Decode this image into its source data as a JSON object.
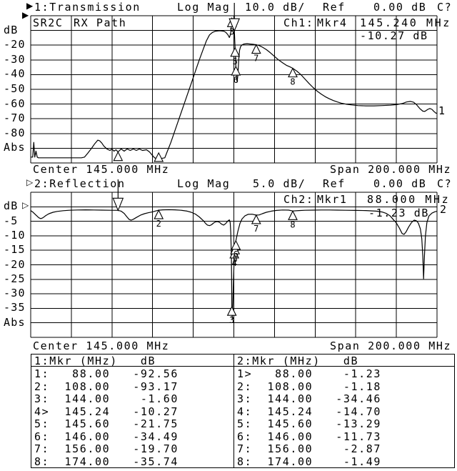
{
  "colors": {
    "background": "#ffffff",
    "foreground": "#000000"
  },
  "channel1": {
    "indicator": "▶",
    "title": "1:Transmission",
    "format": "Log Mag",
    "scale": "10.0 dB/",
    "ref_label": "Ref",
    "ref_value": "0.00 dB",
    "cal_status": "C?",
    "label_cell_1": "SR2C",
    "label_cell_2": "RX Path",
    "readout_channel": "Ch1:",
    "readout_marker": "Mkr4",
    "readout_freq": "145.240 MHz",
    "readout_value": "-10.27 dB",
    "y_labels": [
      "dB",
      "-20",
      "-30",
      "-40",
      "-50",
      "-60",
      "-70",
      "-80",
      "Abs"
    ],
    "center_label": "Center 145.000 MHz",
    "span_label": "Span 200.000 MHz",
    "trace_number": "1",
    "ref_pointer": "▶"
  },
  "channel2": {
    "indicator": "▷",
    "title": "2:Reflection",
    "format": "Log Mag",
    "scale": "5.0 dB/",
    "ref_label": "Ref",
    "ref_value": "0.00 dB",
    "cal_status": "C?",
    "readout_channel": "Ch2:",
    "readout_marker": "Mkr1",
    "readout_freq": "88.000 MHz",
    "readout_value": "-1.23 dB",
    "y_labels": [
      "dB",
      "-5",
      "-10",
      "-15",
      "-20",
      "-25",
      "-30",
      "-35",
      "Abs"
    ],
    "center_label": "Center 145.000 MHz",
    "span_label": "Span 200.000 MHz",
    "trace_number": "2",
    "ref_pointer": "▷"
  },
  "tables": [
    {
      "col_header_left": "1:Mkr (MHz)",
      "col_header_right": "dB",
      "rows": [
        [
          "1:",
          "88.00",
          "-92.56"
        ],
        [
          "2:",
          "108.00",
          "-93.17"
        ],
        [
          "3:",
          "144.00",
          "-1.60"
        ],
        [
          "4>",
          "145.24",
          "-10.27"
        ],
        [
          "5:",
          "145.60",
          "-21.75"
        ],
        [
          "6:",
          "146.00",
          "-34.49"
        ],
        [
          "7:",
          "156.00",
          "-19.70"
        ],
        [
          "8:",
          "174.00",
          "-35.74"
        ]
      ]
    },
    {
      "col_header_left": "2:Mkr (MHz)",
      "col_header_right": "dB",
      "rows": [
        [
          "1>",
          "88.00",
          "-1.23"
        ],
        [
          "2:",
          "108.00",
          "-1.18"
        ],
        [
          "3:",
          "144.00",
          "-34.46"
        ],
        [
          "4:",
          "145.24",
          "-14.70"
        ],
        [
          "5:",
          "145.60",
          "-13.29"
        ],
        [
          "6:",
          "146.00",
          "-11.73"
        ],
        [
          "7:",
          "156.00",
          "-2.87"
        ],
        [
          "8:",
          "174.00",
          "-1.49"
        ]
      ]
    }
  ],
  "chart_data": [
    {
      "type": "line",
      "title": "1:Transmission",
      "format": "Log Mag",
      "scale_db_per_div": 10.0,
      "ref_db": 0.0,
      "x_axis": {
        "center_mhz": 145.0,
        "span_mhz": 200.0,
        "start_mhz": 45.0,
        "stop_mhz": 245.0
      },
      "y_axis": {
        "top_db": 0,
        "bottom_db": -100,
        "grid_divisions": 10
      },
      "active_marker": 4,
      "markers": [
        {
          "n": 1,
          "mhz": 88.0,
          "db": -92.56
        },
        {
          "n": 2,
          "mhz": 108.0,
          "db": -93.17
        },
        {
          "n": 3,
          "mhz": 144.0,
          "db": -1.6
        },
        {
          "n": 4,
          "mhz": 145.24,
          "db": -10.27
        },
        {
          "n": 5,
          "mhz": 145.6,
          "db": -21.75
        },
        {
          "n": 6,
          "mhz": 146.0,
          "db": -34.49
        },
        {
          "n": 7,
          "mhz": 156.0,
          "db": -19.7
        },
        {
          "n": 8,
          "mhz": 174.0,
          "db": -35.74
        }
      ],
      "series": [
        {
          "name": "Transmission trace",
          "x_mhz": [
            45,
            46,
            46.5,
            47,
            47.6,
            48.2,
            48.8,
            52,
            58,
            64,
            70,
            71.5,
            73,
            75,
            76.5,
            78,
            79,
            80,
            81,
            82.5,
            84,
            85,
            86,
            87,
            88,
            89.5,
            91,
            92.5,
            94,
            95.5,
            97,
            98.5,
            100,
            102,
            103.5,
            105,
            106,
            107,
            109,
            111,
            112,
            114,
            116,
            118,
            120,
            122,
            124,
            126,
            128,
            130,
            131.5,
            133,
            134.5,
            136,
            138,
            140,
            141,
            142,
            142.8,
            143.4,
            143.8,
            144.1,
            144.5,
            144.8,
            145.1,
            145.24,
            145.6,
            146,
            146.3,
            146.6,
            147,
            147.4,
            147.8,
            148.3,
            149,
            150,
            151.5,
            153,
            154.5,
            156,
            157.5,
            159,
            161,
            163,
            165,
            167,
            169,
            171,
            173,
            174,
            176,
            178,
            180,
            182,
            184,
            186,
            188,
            190,
            192,
            194,
            196,
            198,
            200,
            203,
            206,
            210,
            214,
            218,
            222,
            225,
            228,
            230,
            232,
            233.5,
            235,
            236.5,
            238,
            239,
            240.5,
            241.5,
            242.5,
            243.5,
            244.5,
            245
          ],
          "y_db": [
            -96,
            -96,
            -86,
            -96,
            -92,
            -96,
            -96.5,
            -96.5,
            -96.5,
            -96.5,
            -96.5,
            -96,
            -93.5,
            -90,
            -87,
            -84.5,
            -85,
            -86.5,
            -88.5,
            -90.5,
            -91.5,
            -90.5,
            -92,
            -91,
            -92.5,
            -90.5,
            -92,
            -90.5,
            -91.5,
            -90.5,
            -91.5,
            -90.5,
            -91.5,
            -91,
            -92.5,
            -95,
            -96.5,
            -97,
            -97,
            -96.5,
            -93,
            -86,
            -78,
            -70,
            -62,
            -54,
            -46,
            -38,
            -30,
            -22.5,
            -17,
            -13,
            -11.3,
            -10.5,
            -10.2,
            -10.5,
            -11.2,
            -12.8,
            -14.8,
            -12.5,
            -6,
            -2.2,
            -2,
            -3.5,
            -7.5,
            -10.27,
            -21.75,
            -34.49,
            -42,
            -45,
            -40,
            -30,
            -23.5,
            -21,
            -19.8,
            -19.2,
            -19,
            -19.2,
            -19.4,
            -19.7,
            -20.3,
            -21.3,
            -23,
            -25.2,
            -27.6,
            -30,
            -32,
            -33.8,
            -35,
            -35.74,
            -37.6,
            -40,
            -43,
            -46,
            -48.8,
            -51.2,
            -53.2,
            -55,
            -56.4,
            -57.6,
            -58.6,
            -59.4,
            -60,
            -60.6,
            -61,
            -61.2,
            -61.2,
            -61,
            -60.8,
            -60.4,
            -59.6,
            -58.6,
            -58.2,
            -58.8,
            -60.5,
            -63,
            -64.8,
            -65,
            -63.6,
            -63,
            -63.6,
            -65,
            -66.2,
            -66.2
          ]
        }
      ]
    },
    {
      "type": "line",
      "title": "2:Reflection",
      "format": "Log Mag",
      "scale_db_per_div": 5.0,
      "ref_db": 0.0,
      "x_axis": {
        "center_mhz": 145.0,
        "span_mhz": 200.0,
        "start_mhz": 45.0,
        "stop_mhz": 245.0
      },
      "y_axis": {
        "top_db": 5,
        "bottom_db": -45,
        "grid_divisions": 10
      },
      "active_marker": 1,
      "markers": [
        {
          "n": 1,
          "mhz": 88.0,
          "db": -1.23
        },
        {
          "n": 2,
          "mhz": 108.0,
          "db": -1.18
        },
        {
          "n": 3,
          "mhz": 144.0,
          "db": -34.46
        },
        {
          "n": 4,
          "mhz": 145.24,
          "db": -14.7
        },
        {
          "n": 5,
          "mhz": 145.6,
          "db": -13.29
        },
        {
          "n": 6,
          "mhz": 146.0,
          "db": -11.73
        },
        {
          "n": 7,
          "mhz": 156.0,
          "db": -2.87
        },
        {
          "n": 8,
          "mhz": 174.0,
          "db": -1.49
        }
      ],
      "series": [
        {
          "name": "Reflection trace",
          "x_mhz": [
            45,
            46,
            47.5,
            49,
            50,
            51,
            52.5,
            54,
            56,
            58,
            61,
            64,
            68,
            72,
            76,
            80,
            84,
            88,
            89.5,
            91,
            92.5,
            93.5,
            94.5,
            95.5,
            97,
            99,
            101,
            103,
            105,
            106.5,
            108,
            110,
            113,
            116,
            119,
            122,
            124,
            126,
            128,
            130,
            131,
            132,
            133,
            134,
            135,
            136,
            137,
            138,
            139,
            140,
            141,
            142,
            142.8,
            143.2,
            143.5,
            143.8,
            144,
            144.2,
            144.5,
            144.8,
            145.1,
            145.24,
            145.6,
            146,
            146.5,
            147,
            148,
            149,
            150.5,
            152,
            154,
            156,
            157.5,
            159,
            161,
            163.5,
            166,
            169,
            172,
            174,
            177,
            180,
            184,
            188,
            192,
            196,
            200,
            205,
            210,
            215,
            218,
            220,
            222,
            223.5,
            225,
            226.5,
            227.8,
            228.8,
            229.8,
            231,
            232.5,
            233.8,
            234.8,
            235.8,
            236.8,
            237.5,
            238,
            238.4,
            238.8,
            239.3,
            240,
            241,
            242.5,
            244,
            245
          ],
          "y_db": [
            -1.3,
            -1.8,
            -2.8,
            -3.8,
            -4.1,
            -3.8,
            -3,
            -2.4,
            -1.9,
            -1.6,
            -1.35,
            -1.2,
            -1.1,
            -1.05,
            -1.1,
            -1.15,
            -1.2,
            -1.23,
            -1.5,
            -2.3,
            -3.6,
            -4.4,
            -4.6,
            -4.3,
            -3.7,
            -2.9,
            -2.4,
            -2.05,
            -1.75,
            -1.45,
            -1.18,
            -1.05,
            -1,
            -1.05,
            -1.2,
            -1.5,
            -1.9,
            -2.5,
            -3.5,
            -4.8,
            -5.7,
            -6.3,
            -6.5,
            -6.2,
            -5.6,
            -5.2,
            -5.1,
            -5.4,
            -6,
            -6.3,
            -5.8,
            -4.9,
            -4.5,
            -5.5,
            -9,
            -18,
            -34.46,
            -38.5,
            -33,
            -26,
            -19,
            -14.7,
            -13.29,
            -11.73,
            -10,
            -8.4,
            -5.8,
            -4.2,
            -3.1,
            -2.6,
            -2.55,
            -2.87,
            -2.8,
            -2.4,
            -1.9,
            -1.5,
            -1.25,
            -1.1,
            -1.15,
            -1.45,
            -1.3,
            -1.2,
            -1.15,
            -1.1,
            -1.1,
            -1.15,
            -1.2,
            -1.25,
            -1.3,
            -1.5,
            -1.8,
            -2.3,
            -3.2,
            -4.4,
            -5.6,
            -7.4,
            -9.2,
            -9.5,
            -8.6,
            -7,
            -5.4,
            -4.6,
            -4.8,
            -5.6,
            -7.6,
            -11,
            -17,
            -24.8,
            -17,
            -10,
            -5.5,
            -3.2,
            -2.2,
            -1.7,
            -1.55
          ]
        }
      ]
    }
  ]
}
